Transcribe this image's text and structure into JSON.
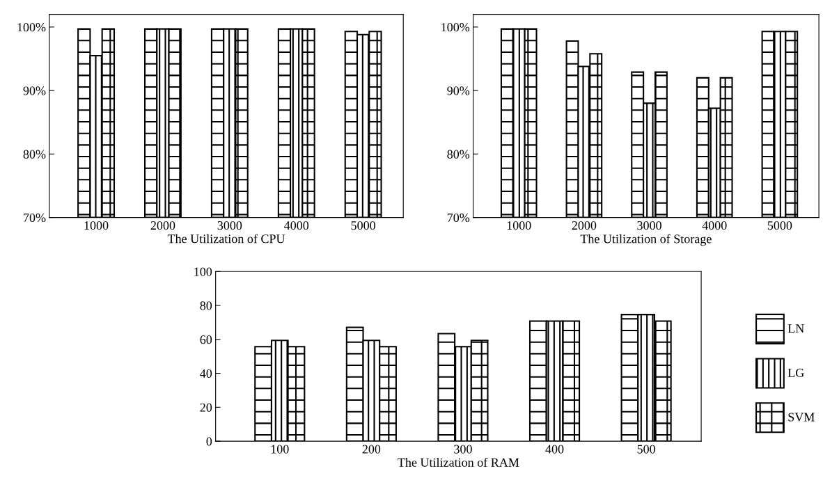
{
  "chart_data": [
    {
      "type": "bar",
      "xlabel": "The Utilization of CPU",
      "categories": [
        "1000",
        "2000",
        "3000",
        "4000",
        "5000"
      ],
      "ylim": [
        70,
        102
      ],
      "yticks": [
        {
          "value": 70,
          "label": "70%"
        },
        {
          "value": 80,
          "label": "80%"
        },
        {
          "value": 90,
          "label": "90%"
        },
        {
          "value": 100,
          "label": "100%"
        }
      ],
      "grid": false,
      "series": [
        {
          "color": "#000000",
          "values": [
            99.7,
            99.7,
            99.7,
            99.7,
            99.3
          ]
        },
        {
          "color": "#000000",
          "values": [
            95.5,
            99.7,
            99.7,
            99.7,
            98.8
          ]
        },
        {
          "color": "#000000",
          "values": [
            99.7,
            99.7,
            99.7,
            99.7,
            99.3
          ]
        }
      ]
    },
    {
      "type": "bar",
      "xlabel": "The Utilization of Storage",
      "categories": [
        "1000",
        "2000",
        "3000",
        "4000",
        "5000"
      ],
      "ylim": [
        70,
        102
      ],
      "yticks": [
        {
          "value": 70,
          "label": "70%"
        },
        {
          "value": 80,
          "label": "80%"
        },
        {
          "value": 90,
          "label": "90%"
        },
        {
          "value": 100,
          "label": "100%"
        }
      ],
      "grid": false,
      "series": [
        {
          "color": "#000000",
          "values": [
            99.7,
            97.8,
            92.9,
            92.0,
            99.3
          ]
        },
        {
          "color": "#000000",
          "values": [
            99.7,
            93.8,
            88.0,
            87.2,
            99.3
          ]
        },
        {
          "color": "#000000",
          "values": [
            99.7,
            95.8,
            92.9,
            92.0,
            99.3
          ]
        }
      ]
    },
    {
      "type": "bar",
      "xlabel": "The Utilization of RAM",
      "categories": [
        "100",
        "200",
        "300",
        "400",
        "500"
      ],
      "ylim": [
        0,
        100
      ],
      "yticks": [
        0,
        20,
        40,
        60,
        80,
        100
      ],
      "grid": false,
      "legend": "right",
      "series": [
        {
          "name": "LN",
          "color": "#000000",
          "values": [
            55.7,
            67.1,
            63.4,
            70.8,
            74.6
          ]
        },
        {
          "name": "LG",
          "color": "#000000",
          "values": [
            59.4,
            59.4,
            55.7,
            70.8,
            74.6
          ]
        },
        {
          "name": "SVM",
          "color": "#000000",
          "values": [
            55.7,
            55.7,
            59.4,
            70.8,
            70.8
          ]
        }
      ]
    }
  ]
}
